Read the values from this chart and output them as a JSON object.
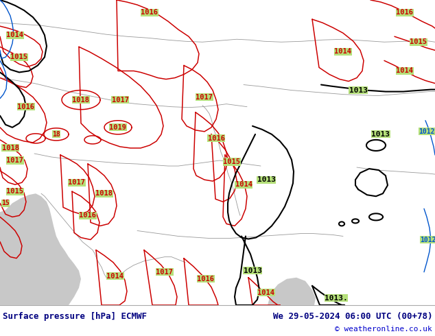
{
  "title_left": "Surface pressure [hPa] ECMWF",
  "title_right": "We 29-05-2024 06:00 UTC (00+78)",
  "copyright": "© weatheronline.co.uk",
  "background_color": "#b5e07a",
  "sea_color": "#c8c8c8",
  "footer_bg": "#ffffff",
  "red_color": "#cc0000",
  "black_color": "#000000",
  "blue_color": "#0055cc",
  "gray_color": "#999999",
  "title_color": "#000080",
  "copyright_color": "#0000cc",
  "figsize": [
    6.34,
    4.9
  ],
  "dpi": 100
}
